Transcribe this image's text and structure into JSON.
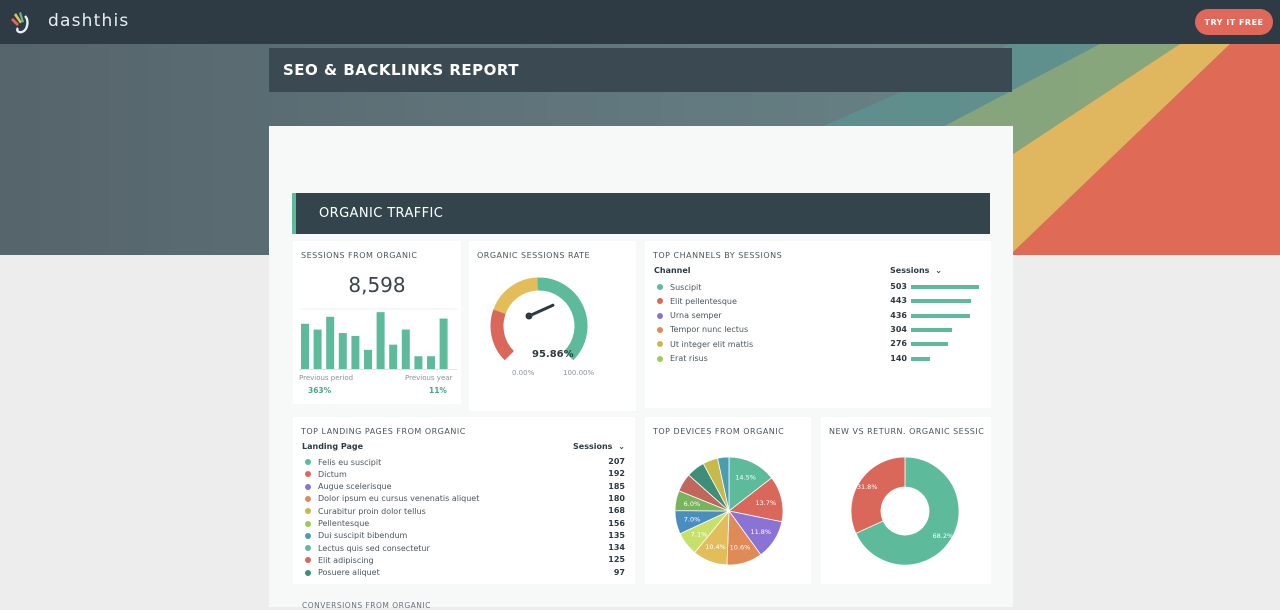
{
  "app": {
    "brand": "dashthis",
    "cta_label": "TRY IT FREE"
  },
  "report": {
    "title": "SEO & BACKLINKS REPORT",
    "section": "ORGANIC TRAFFIC",
    "next_section_partial": "CONVERSIONS FROM ORGANIC"
  },
  "colors": {
    "green": "#5dbb9b",
    "red": "#d9675a",
    "purple": "#8b73d6",
    "orange": "#e08a57",
    "olive": "#c7b94a",
    "lime": "#9fcb5a",
    "teal": "#4a9cb1",
    "yellow": "#e3bd5a",
    "blue": "#4a8ec0"
  },
  "sessions_from_organic": {
    "title": "SESSIONS FROM ORGANIC",
    "value": "8,598",
    "bars": [
      0.78,
      0.68,
      0.9,
      0.62,
      0.57,
      0.33,
      0.98,
      0.42,
      0.68,
      0.22,
      0.22,
      0.87
    ],
    "previous_period_label": "Previous period",
    "previous_period_value": "363%",
    "previous_year_label": "Previous year",
    "previous_year_value": "11%"
  },
  "organic_sessions_rate": {
    "title": "ORGANIC SESSIONS RATE",
    "value": "95.86%",
    "rate": 0.9586,
    "min_label": "0.00%",
    "max_label": "100.00%"
  },
  "top_channels": {
    "title": "TOP CHANNELS BY SESSIONS",
    "col_channel": "Channel",
    "col_sessions": "Sessions",
    "sort_icon": "chevron-down-icon",
    "rows": [
      {
        "label": "Suscipit",
        "value": "503",
        "color": "#5dbb9b"
      },
      {
        "label": "Elit pellentesque",
        "value": "443",
        "color": "#d9675a"
      },
      {
        "label": "Urna semper",
        "value": "436",
        "color": "#8b73d6"
      },
      {
        "label": "Tempor nunc lectus",
        "value": "304",
        "color": "#e08a57"
      },
      {
        "label": "Ut integer elit mattis",
        "value": "276",
        "color": "#c7b94a"
      },
      {
        "label": "Erat risus",
        "value": "140",
        "color": "#9fcb5a"
      }
    ]
  },
  "top_landing_pages": {
    "title": "TOP LANDING PAGES FROM ORGANIC",
    "col_page": "Landing Page",
    "col_sessions": "Sessions",
    "rows": [
      {
        "label": "Felis eu suscipit",
        "value": "207",
        "color": "#5dbb9b"
      },
      {
        "label": "Dictum",
        "value": "192",
        "color": "#d9675a"
      },
      {
        "label": "Augue scelerisque",
        "value": "185",
        "color": "#8b73d6"
      },
      {
        "label": "Dolor ipsum eu cursus venenatis aliquet",
        "value": "180",
        "color": "#e08a57"
      },
      {
        "label": "Curabitur proin dolor tellus",
        "value": "168",
        "color": "#c7b94a"
      },
      {
        "label": "Pellentesque",
        "value": "156",
        "color": "#9fcb5a"
      },
      {
        "label": "Dui suscipit bibendum",
        "value": "135",
        "color": "#4a9cb1"
      },
      {
        "label": "Lectus quis sed consectetur",
        "value": "134",
        "color": "#5dbb9b"
      },
      {
        "label": "Elit adipiscing",
        "value": "125",
        "color": "#d9675a"
      },
      {
        "label": "Posuere aliquet",
        "value": "97",
        "color": "#3e8f7a"
      }
    ]
  },
  "top_devices": {
    "title": "TOP DEVICES FROM ORGANIC",
    "slices": [
      {
        "value": 14.5,
        "label": "14.5%",
        "color": "#5dbb9b"
      },
      {
        "value": 13.7,
        "label": "13.7%",
        "color": "#d9675a"
      },
      {
        "value": 11.8,
        "label": "11.8%",
        "color": "#8b73d6"
      },
      {
        "value": 10.6,
        "label": "10.6%",
        "color": "#e08a57"
      },
      {
        "value": 10.4,
        "label": "10.4%",
        "color": "#e3bd5a"
      },
      {
        "value": 7.1,
        "label": "7.1%",
        "color": "#c7e06a"
      },
      {
        "value": 7.0,
        "label": "7.0%",
        "color": "#4a8ec0"
      },
      {
        "value": 6.0,
        "label": "6.0%",
        "color": "#78b35e"
      },
      {
        "value": 5.5,
        "label": "",
        "color": "#c0665a"
      },
      {
        "value": 5.5,
        "label": "",
        "color": "#3e8f7a"
      },
      {
        "value": 4.5,
        "label": "",
        "color": "#c7b94a"
      },
      {
        "value": 3.4,
        "label": "",
        "color": "#4a9cb1"
      }
    ]
  },
  "new_vs_return": {
    "title": "NEW VS RETURN. ORGANIC SESSIC",
    "slices": [
      {
        "value": 68.2,
        "label": "68.2%",
        "color": "#5dbb9b"
      },
      {
        "value": 31.8,
        "label": "31.8%",
        "color": "#d9675a"
      }
    ]
  }
}
